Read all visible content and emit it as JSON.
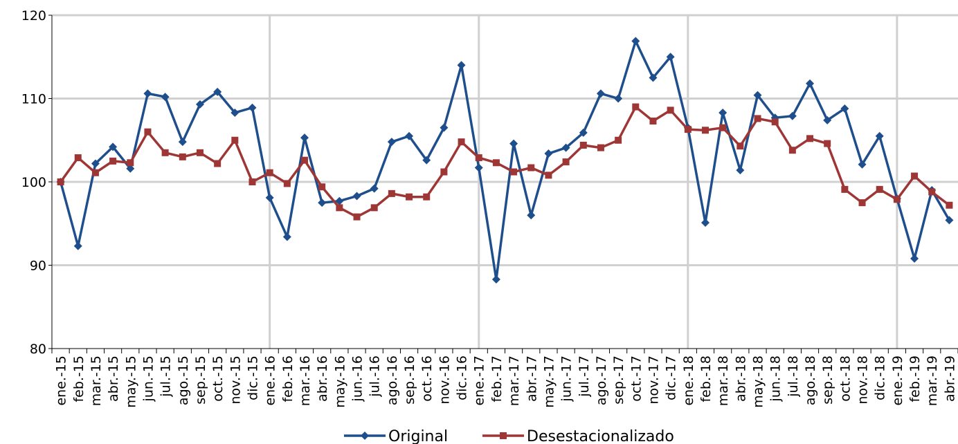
{
  "chart_data": {
    "type": "line",
    "categories": [
      "ene.-15",
      "feb.-15",
      "mar.-15",
      "abr.-15",
      "may.-15",
      "jun.-15",
      "jul.-15",
      "ago.-15",
      "sep.-15",
      "oct.-15",
      "nov.-15",
      "dic.-15",
      "ene.-16",
      "feb.-16",
      "mar.-16",
      "abr.-16",
      "may.-16",
      "jun.-16",
      "jul.-16",
      "ago.-16",
      "sep.-16",
      "oct.-16",
      "nov.-16",
      "dic.-16",
      "ene.-17",
      "feb.-17",
      "mar.-17",
      "abr.-17",
      "may.-17",
      "jun.-17",
      "jul.-17",
      "ago.-17",
      "sep.-17",
      "oct.-17",
      "nov.-17",
      "dic.-17",
      "ene.-18",
      "feb.-18",
      "mar.-18",
      "abr.-18",
      "may.-18",
      "jun.-18",
      "jul.-18",
      "ago.-18",
      "sep.-18",
      "oct.-18",
      "nov.-18",
      "dic.-18",
      "ene.-19",
      "feb.-19",
      "mar.-19",
      "abr.-19"
    ],
    "series": [
      {
        "name": "Original",
        "color": "#1f4e8c",
        "marker": "diamond",
        "values": [
          100,
          92.3,
          102.2,
          104.2,
          101.6,
          110.6,
          110.2,
          104.8,
          109.3,
          110.8,
          108.3,
          108.9,
          98.1,
          93.4,
          105.3,
          97.5,
          97.7,
          98.3,
          99.2,
          104.8,
          105.5,
          102.6,
          106.5,
          114.0,
          101.7,
          88.3,
          104.6,
          96.0,
          103.4,
          104.1,
          105.9,
          110.6,
          110.0,
          116.9,
          112.5,
          115.0,
          106.5,
          95.1,
          108.3,
          101.4,
          110.4,
          107.7,
          107.9,
          111.8,
          107.4,
          108.8,
          102.1,
          105.5,
          98.0,
          90.8,
          99.0,
          95.4
        ]
      },
      {
        "name": "Desestacionalizado",
        "color": "#9e3636",
        "marker": "square",
        "values": [
          100,
          102.9,
          101.1,
          102.5,
          102.3,
          106.0,
          103.5,
          103.0,
          103.5,
          102.2,
          105.0,
          100.0,
          101.1,
          99.8,
          102.6,
          99.4,
          96.9,
          95.8,
          96.9,
          98.6,
          98.2,
          98.2,
          101.2,
          104.8,
          102.9,
          102.3,
          101.2,
          101.7,
          100.8,
          102.4,
          104.4,
          104.1,
          105.0,
          109.0,
          107.3,
          108.6,
          106.3,
          106.2,
          106.5,
          104.3,
          107.6,
          107.2,
          103.8,
          105.2,
          104.6,
          99.1,
          97.5,
          99.1,
          97.9,
          100.7,
          98.8,
          97.2
        ]
      }
    ],
    "ylim": [
      80,
      120
    ],
    "yticks": [
      80,
      90,
      100,
      110,
      120
    ],
    "grid": true,
    "legend": "bottom"
  }
}
